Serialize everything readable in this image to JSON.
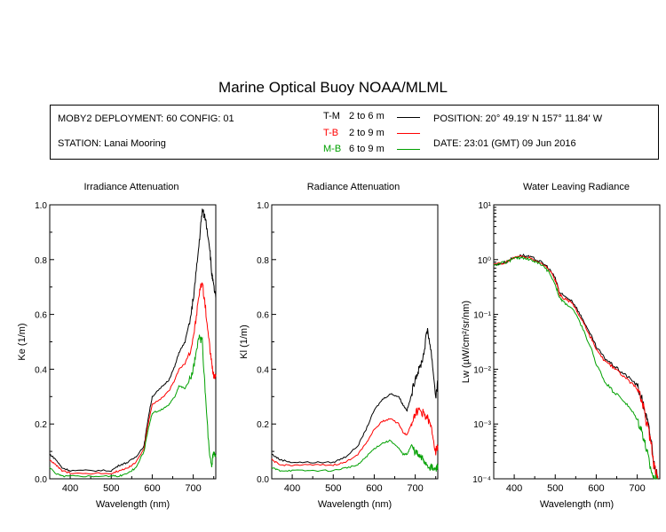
{
  "title": "Marine Optical Buoy NOAA/MLML",
  "info": {
    "deployment": "MOBY2 DEPLOYMENT: 60 CONFIG: 01",
    "station": "STATION: Lanai Mooring",
    "position": "POSITION: 20° 49.19' N   157° 11.84' W",
    "date": "DATE: 23:01 (GMT) 09 Jun 2016",
    "legend": [
      {
        "name": "T-M",
        "range": "2 to 6  m",
        "color": "#000000"
      },
      {
        "name": "T-B",
        "range": "2 to 9  m",
        "color": "#ff0000"
      },
      {
        "name": "M-B",
        "range": "6 to 9  m",
        "color": "#00a000"
      }
    ]
  },
  "colors": {
    "tm": "#000000",
    "tb": "#ff0000",
    "mb": "#00a000"
  },
  "chart_data": [
    {
      "type": "line",
      "title": "Irradiance Attenuation",
      "xlabel": "Wavelength (nm)",
      "ylabel": "Ke  (1/m)",
      "xlim": [
        350,
        755
      ],
      "ylim": [
        0,
        1
      ],
      "xticks": [
        "400",
        "500",
        "600",
        "700"
      ],
      "yticks": [
        "0.0",
        "0.2",
        "0.4",
        "0.6",
        "0.8",
        "1.0"
      ],
      "series": [
        {
          "name": "T-M",
          "color": "#000000",
          "x": [
            350,
            365,
            380,
            400,
            450,
            500,
            520,
            540,
            560,
            580,
            590,
            600,
            620,
            640,
            655,
            665,
            680,
            695,
            705,
            715,
            722,
            730,
            740,
            745,
            750,
            755
          ],
          "y": [
            0.09,
            0.07,
            0.04,
            0.03,
            0.03,
            0.03,
            0.05,
            0.06,
            0.08,
            0.12,
            0.22,
            0.3,
            0.33,
            0.36,
            0.41,
            0.46,
            0.5,
            0.6,
            0.72,
            0.87,
            0.98,
            0.95,
            0.85,
            0.75,
            0.7,
            0.66
          ]
        },
        {
          "name": "T-B",
          "color": "#ff0000",
          "x": [
            350,
            365,
            380,
            400,
            450,
            500,
            520,
            540,
            560,
            580,
            590,
            600,
            620,
            640,
            655,
            665,
            680,
            695,
            705,
            715,
            722,
            730,
            740,
            745,
            750,
            755
          ],
          "y": [
            0.07,
            0.05,
            0.03,
            0.02,
            0.02,
            0.02,
            0.03,
            0.04,
            0.06,
            0.11,
            0.2,
            0.27,
            0.29,
            0.32,
            0.36,
            0.4,
            0.42,
            0.48,
            0.56,
            0.68,
            0.72,
            0.62,
            0.48,
            0.42,
            0.38,
            0.38
          ]
        },
        {
          "name": "M-B",
          "color": "#00a000",
          "x": [
            350,
            365,
            380,
            400,
            450,
            500,
            520,
            540,
            560,
            580,
            590,
            600,
            620,
            640,
            655,
            665,
            680,
            695,
            705,
            715,
            722,
            730,
            740,
            745,
            750,
            755
          ],
          "y": [
            0.04,
            0.02,
            0.01,
            0.01,
            0.01,
            0.01,
            0.01,
            0.02,
            0.04,
            0.1,
            0.18,
            0.24,
            0.25,
            0.27,
            0.3,
            0.34,
            0.33,
            0.37,
            0.44,
            0.52,
            0.5,
            0.3,
            0.08,
            0.05,
            0.1,
            0.08
          ]
        }
      ]
    },
    {
      "type": "line",
      "title": "Radiance Attenuation",
      "xlabel": "Wavelength (nm)",
      "ylabel": "Kl  (1/m)",
      "xlim": [
        350,
        755
      ],
      "ylim": [
        0,
        1
      ],
      "xticks": [
        "400",
        "500",
        "600",
        "700"
      ],
      "yticks": [
        "0.0",
        "0.2",
        "0.4",
        "0.6",
        "0.8",
        "1.0"
      ],
      "series": [
        {
          "name": "T-M",
          "color": "#000000",
          "x": [
            350,
            370,
            400,
            450,
            500,
            530,
            560,
            580,
            600,
            620,
            640,
            660,
            670,
            680,
            690,
            700,
            710,
            720,
            730,
            740,
            750,
            755
          ],
          "y": [
            0.09,
            0.07,
            0.06,
            0.06,
            0.06,
            0.08,
            0.12,
            0.18,
            0.25,
            0.29,
            0.31,
            0.3,
            0.27,
            0.25,
            0.3,
            0.37,
            0.4,
            0.45,
            0.55,
            0.45,
            0.3,
            0.35
          ]
        },
        {
          "name": "T-B",
          "color": "#ff0000",
          "x": [
            350,
            370,
            400,
            450,
            500,
            530,
            560,
            580,
            600,
            620,
            640,
            660,
            670,
            680,
            690,
            700,
            710,
            720,
            730,
            740,
            750,
            755
          ],
          "y": [
            0.07,
            0.05,
            0.05,
            0.05,
            0.05,
            0.06,
            0.09,
            0.13,
            0.18,
            0.21,
            0.22,
            0.2,
            0.17,
            0.16,
            0.2,
            0.24,
            0.25,
            0.24,
            0.22,
            0.18,
            0.1,
            0.12
          ]
        },
        {
          "name": "M-B",
          "color": "#00a000",
          "x": [
            350,
            370,
            400,
            450,
            500,
            530,
            560,
            580,
            600,
            620,
            640,
            660,
            670,
            680,
            690,
            700,
            710,
            720,
            730,
            740,
            750,
            755
          ],
          "y": [
            0.04,
            0.03,
            0.03,
            0.03,
            0.03,
            0.04,
            0.05,
            0.08,
            0.11,
            0.13,
            0.14,
            0.11,
            0.09,
            0.09,
            0.12,
            0.1,
            0.08,
            0.07,
            0.05,
            0.04,
            0.03,
            0.05
          ]
        }
      ]
    },
    {
      "type": "line",
      "title": "Water Leaving Radiance",
      "xlabel": "Wavelength (nm)",
      "ylabel": "Lw  (µW/cm²/sr/nm)",
      "xlim": [
        350,
        755
      ],
      "ylim": [
        0.0001,
        10
      ],
      "log_y": true,
      "xticks": [
        "400",
        "500",
        "600",
        "700"
      ],
      "yticks": [
        "10⁻⁴",
        "10⁻³",
        "10⁻²",
        "10⁻¹",
        "10⁰",
        "10¹"
      ],
      "series": [
        {
          "name": "T-M",
          "color": "#000000",
          "x": [
            350,
            380,
            400,
            420,
            440,
            460,
            480,
            500,
            510,
            520,
            540,
            560,
            580,
            600,
            620,
            640,
            660,
            680,
            700,
            710,
            720,
            730,
            740,
            750
          ],
          "y": [
            0.8,
            0.9,
            1.1,
            1.2,
            1.1,
            0.95,
            0.75,
            0.45,
            0.25,
            0.22,
            0.18,
            0.1,
            0.05,
            0.025,
            0.016,
            0.012,
            0.009,
            0.007,
            0.005,
            0.003,
            0.0015,
            0.0007,
            0.0002,
            0.0001
          ]
        },
        {
          "name": "T-B",
          "color": "#ff0000",
          "x": [
            350,
            380,
            400,
            420,
            440,
            460,
            480,
            500,
            510,
            520,
            540,
            560,
            580,
            600,
            620,
            640,
            660,
            680,
            700,
            710,
            720,
            730,
            740,
            750
          ],
          "y": [
            0.8,
            0.9,
            1.1,
            1.15,
            1.05,
            0.9,
            0.72,
            0.42,
            0.23,
            0.2,
            0.16,
            0.09,
            0.045,
            0.022,
            0.014,
            0.011,
            0.008,
            0.006,
            0.0045,
            0.0028,
            0.0013,
            0.0006,
            0.00018,
            0.0001
          ]
        },
        {
          "name": "M-B",
          "color": "#00a000",
          "x": [
            350,
            380,
            400,
            420,
            440,
            460,
            480,
            500,
            510,
            520,
            540,
            560,
            580,
            600,
            620,
            640,
            660,
            680,
            700,
            710,
            720,
            730,
            740,
            750
          ],
          "y": [
            0.8,
            0.9,
            1.05,
            1.1,
            1.0,
            0.85,
            0.65,
            0.35,
            0.2,
            0.17,
            0.13,
            0.07,
            0.03,
            0.012,
            0.006,
            0.004,
            0.003,
            0.002,
            0.0012,
            0.0008,
            0.0004,
            0.00018,
            0.0001,
            0.0001
          ]
        }
      ]
    }
  ]
}
